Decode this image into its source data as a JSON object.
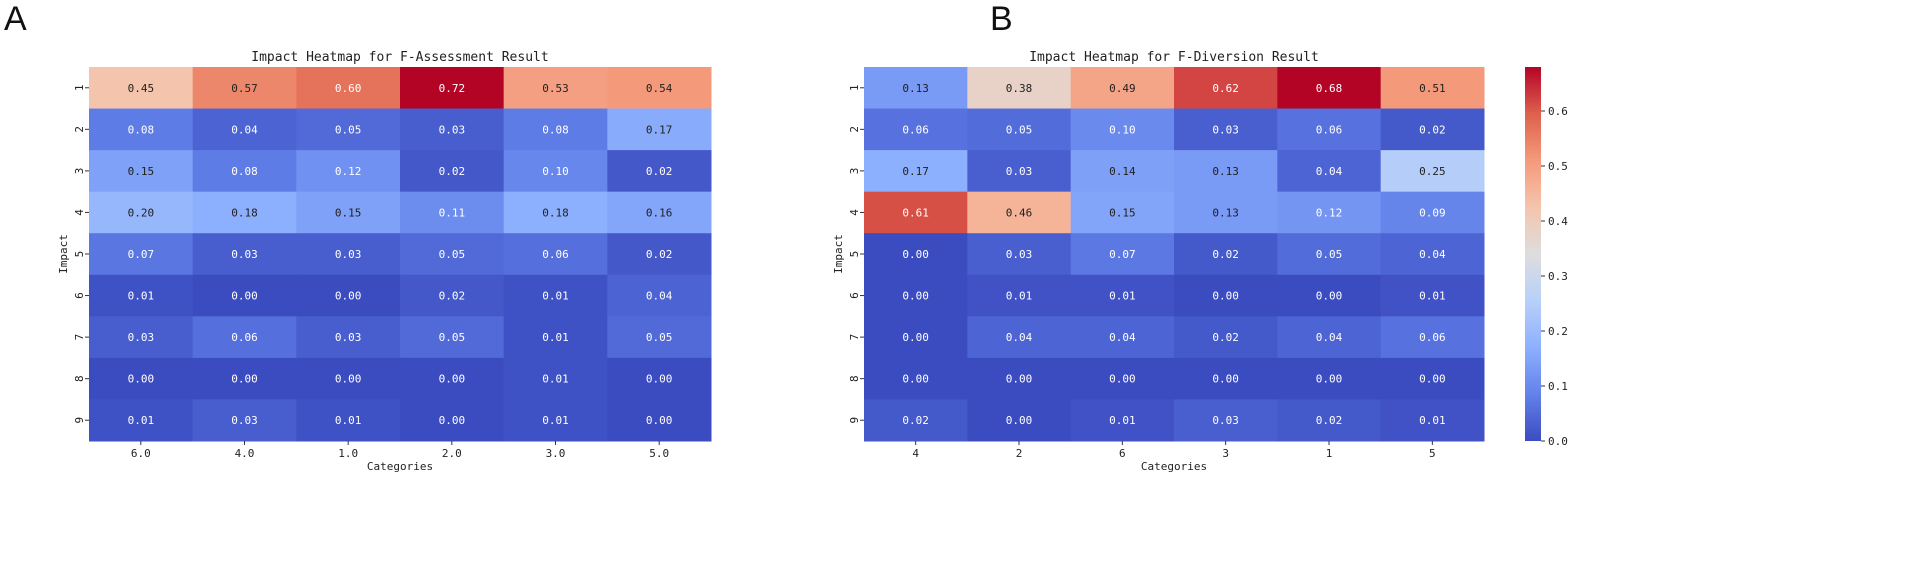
{
  "panels": {
    "a_letter": "A",
    "b_letter": "B"
  },
  "colorbar": {
    "ticks": [
      0.0,
      0.1,
      0.2,
      0.3,
      0.4,
      0.5,
      0.6
    ],
    "tick_labels": [
      "0.0",
      "0.1",
      "0.2",
      "0.3",
      "0.4",
      "0.5",
      "0.6"
    ]
  },
  "chart_data": [
    {
      "type": "heatmap",
      "title": "Impact Heatmap for F-Assessment Result",
      "xlabel": "Categories",
      "ylabel": "Impact",
      "categories": [
        "6.0",
        "4.0",
        "1.0",
        "2.0",
        "3.0",
        "5.0"
      ],
      "rows": [
        "1",
        "2",
        "3",
        "4",
        "5",
        "6",
        "7",
        "8",
        "9"
      ],
      "vmin": 0.0,
      "vmax": 0.72,
      "values": [
        [
          0.45,
          0.57,
          0.6,
          0.72,
          0.53,
          0.54
        ],
        [
          0.08,
          0.04,
          0.05,
          0.03,
          0.08,
          0.17
        ],
        [
          0.15,
          0.08,
          0.12,
          0.02,
          0.1,
          0.02
        ],
        [
          0.2,
          0.18,
          0.15,
          0.11,
          0.18,
          0.16
        ],
        [
          0.07,
          0.03,
          0.03,
          0.05,
          0.06,
          0.02
        ],
        [
          0.01,
          0.0,
          0.0,
          0.02,
          0.01,
          0.04
        ],
        [
          0.03,
          0.06,
          0.03,
          0.05,
          0.01,
          0.05
        ],
        [
          0.0,
          0.0,
          0.0,
          0.0,
          0.01,
          0.0
        ],
        [
          0.01,
          0.03,
          0.01,
          0.0,
          0.01,
          0.0
        ]
      ]
    },
    {
      "type": "heatmap",
      "title": "Impact Heatmap for F-Diversion Result",
      "xlabel": "Categories",
      "ylabel": "Impact",
      "categories": [
        "4",
        "2",
        "6",
        "3",
        "1",
        "5"
      ],
      "rows": [
        "1",
        "2",
        "3",
        "4",
        "5",
        "6",
        "7",
        "8",
        "9"
      ],
      "vmin": 0.0,
      "vmax": 0.68,
      "values": [
        [
          0.13,
          0.38,
          0.49,
          0.62,
          0.68,
          0.51
        ],
        [
          0.06,
          0.05,
          0.1,
          0.03,
          0.06,
          0.02
        ],
        [
          0.17,
          0.03,
          0.14,
          0.13,
          0.04,
          0.25
        ],
        [
          0.61,
          0.46,
          0.15,
          0.13,
          0.12,
          0.09
        ],
        [
          0.0,
          0.03,
          0.07,
          0.02,
          0.05,
          0.04
        ],
        [
          0.0,
          0.01,
          0.01,
          0.0,
          0.0,
          0.01
        ],
        [
          0.0,
          0.04,
          0.04,
          0.02,
          0.04,
          0.06
        ],
        [
          0.0,
          0.0,
          0.0,
          0.0,
          0.0,
          0.0
        ],
        [
          0.02,
          0.0,
          0.01,
          0.03,
          0.02,
          0.01
        ]
      ]
    }
  ]
}
